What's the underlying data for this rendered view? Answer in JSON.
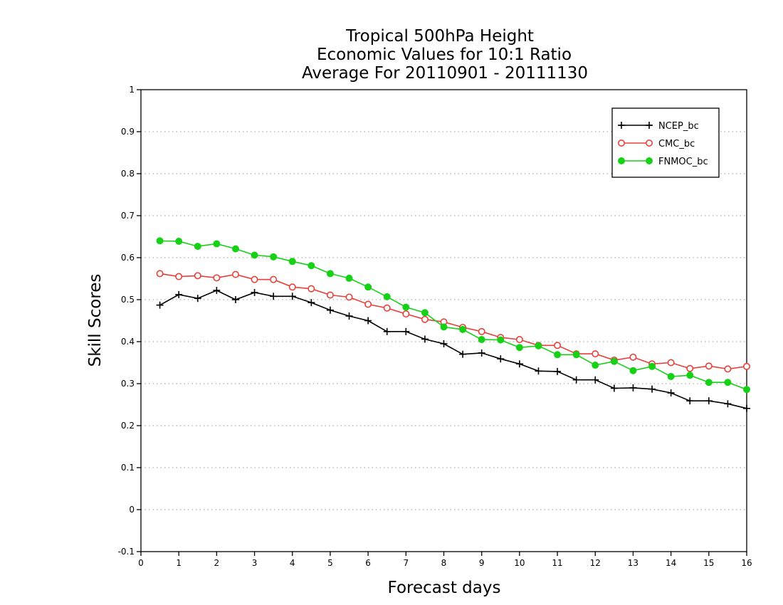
{
  "chart_data": {
    "type": "line",
    "title_lines": [
      "Tropical 500hPa Height",
      "Economic Values for 10:1 Ratio",
      "Average For 20110901 - 20111130"
    ],
    "xlabel": "Forecast days",
    "ylabel": "Skill Scores",
    "xlim": [
      0,
      16
    ],
    "ylim": [
      -0.1,
      1
    ],
    "xticks": [
      0,
      1,
      2,
      3,
      4,
      5,
      6,
      7,
      8,
      9,
      10,
      11,
      12,
      13,
      14,
      15,
      16
    ],
    "yticks": [
      -0.1,
      0,
      0.1,
      0.2,
      0.3,
      0.4,
      0.5,
      0.6,
      0.7,
      0.8,
      0.9,
      1
    ],
    "ytick_labels": [
      "-0.1",
      "0",
      "0.1",
      "0.2",
      "0.3",
      "0.4",
      "0.5",
      "0.6",
      "0.7",
      "0.8",
      "0.9",
      "1"
    ],
    "grid": "horizontal-dotted",
    "legend_position": "top-right",
    "x": [
      0.5,
      1,
      1.5,
      2,
      2.5,
      3,
      3.5,
      4,
      4.5,
      5,
      5.5,
      6,
      6.5,
      7,
      7.5,
      8,
      8.5,
      9,
      9.5,
      10,
      10.5,
      11,
      11.5,
      12,
      12.5,
      13,
      13.5,
      14,
      14.5,
      15,
      15.5,
      16
    ],
    "series": [
      {
        "name": "NCEP_bc",
        "color": "#000000",
        "marker": "plus",
        "values": [
          0.487,
          0.512,
          0.503,
          0.522,
          0.5,
          0.517,
          0.508,
          0.508,
          0.493,
          0.475,
          0.461,
          0.45,
          0.424,
          0.424,
          0.406,
          0.395,
          0.37,
          0.373,
          0.359,
          0.347,
          0.33,
          0.329,
          0.309,
          0.309,
          0.289,
          0.29,
          0.287,
          0.278,
          0.259,
          0.259,
          0.252,
          0.241
        ]
      },
      {
        "name": "CMC_bc",
        "color": "#e8403a",
        "marker": "open-circle",
        "values": [
          0.562,
          0.555,
          0.557,
          0.552,
          0.56,
          0.548,
          0.548,
          0.53,
          0.526,
          0.511,
          0.506,
          0.489,
          0.48,
          0.466,
          0.453,
          0.447,
          0.434,
          0.424,
          0.41,
          0.405,
          0.391,
          0.391,
          0.371,
          0.371,
          0.356,
          0.363,
          0.347,
          0.35,
          0.336,
          0.342,
          0.335,
          0.341
        ]
      },
      {
        "name": "FNMOC_bc",
        "color": "#16d116",
        "marker": "filled-circle",
        "values": [
          0.64,
          0.639,
          0.627,
          0.633,
          0.621,
          0.606,
          0.602,
          0.591,
          0.581,
          0.562,
          0.551,
          0.53,
          0.507,
          0.482,
          0.469,
          0.435,
          0.429,
          0.405,
          0.404,
          0.386,
          0.39,
          0.369,
          0.369,
          0.344,
          0.353,
          0.331,
          0.341,
          0.317,
          0.32,
          0.303,
          0.303,
          0.286
        ]
      }
    ]
  }
}
